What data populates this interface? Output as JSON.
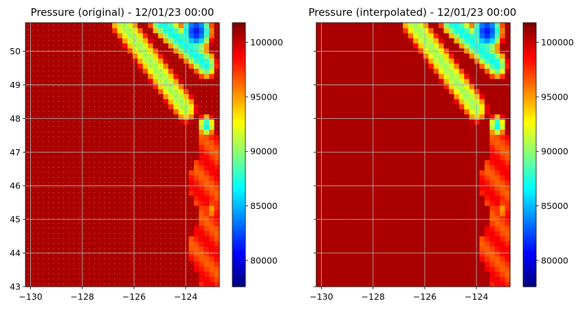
{
  "chart_data": [
    {
      "type": "heatmap",
      "title": "Pressure (original) - 12/01/23 00:00",
      "xlabel": "",
      "ylabel": "",
      "xlim": [
        -130.2,
        -122.7
      ],
      "ylim": [
        43.0,
        50.85
      ],
      "xticks": [
        -130,
        -128,
        -126,
        -124
      ],
      "xtick_labels": [
        "−130",
        "−128",
        "−126",
        "−124"
      ],
      "yticks": [
        43,
        44,
        45,
        46,
        47,
        48,
        49,
        50
      ],
      "ytick_labels": [
        "43",
        "44",
        "45",
        "46",
        "47",
        "48",
        "49",
        "50"
      ],
      "grid": true,
      "style": "scatter-dots",
      "colorbar": {
        "cmap": "jet",
        "range": [
          77600,
          101800
        ],
        "ticks": [
          80000,
          85000,
          90000,
          95000,
          100000
        ],
        "tick_labels": [
          "80000",
          "85000",
          "90000",
          "95000",
          "100000"
        ]
      },
      "field": {
        "background": 100800,
        "features": [
          {
            "shape": "coast",
            "min_lat": 43.0,
            "max_lat": 47.5,
            "lon_start": -123.7,
            "value": 96500
          },
          {
            "shape": "band",
            "from": [
              -126.5,
              50.9
            ],
            "to": [
              -124.0,
              48.3
            ],
            "width_deg": 0.45,
            "value": 90500
          },
          {
            "shape": "band",
            "from": [
              -125.0,
              50.9
            ],
            "to": [
              -123.2,
              49.6
            ],
            "width_deg": 0.45,
            "value": 87000
          },
          {
            "shape": "blob",
            "center": [
              -123.6,
              50.6
            ],
            "radius_deg": 0.7,
            "value": 81000
          },
          {
            "shape": "blob",
            "center": [
              -123.2,
              47.8
            ],
            "radius_deg": 0.35,
            "value": 86500
          },
          {
            "shape": "blob",
            "center": [
              -123.0,
              45.3
            ],
            "radius_deg": 0.3,
            "value": 95000
          }
        ]
      }
    },
    {
      "type": "heatmap",
      "title": "Pressure (interpolated) - 12/01/23 00:00",
      "xlabel": "",
      "ylabel": "",
      "xlim": [
        -130.2,
        -122.7
      ],
      "ylim": [
        43.0,
        50.85
      ],
      "xticks": [
        -130,
        -128,
        -126,
        -124
      ],
      "xtick_labels": [
        "−130",
        "−128",
        "−126",
        "−124"
      ],
      "yticks": [
        43,
        44,
        45,
        46,
        47,
        48,
        49,
        50
      ],
      "ytick_labels": [],
      "grid": true,
      "style": "pixel-grid",
      "colorbar": {
        "cmap": "jet",
        "range": [
          77600,
          101800
        ],
        "ticks": [
          80000,
          85000,
          90000,
          95000,
          100000
        ],
        "tick_labels": [
          "80000",
          "85000",
          "90000",
          "95000",
          "100000"
        ]
      },
      "field": {
        "background": 100800,
        "features": [
          {
            "shape": "coast",
            "min_lat": 43.0,
            "max_lat": 47.5,
            "lon_start": -123.7,
            "value": 96500
          },
          {
            "shape": "band",
            "from": [
              -126.5,
              50.9
            ],
            "to": [
              -124.0,
              48.3
            ],
            "width_deg": 0.45,
            "value": 90500
          },
          {
            "shape": "band",
            "from": [
              -125.0,
              50.9
            ],
            "to": [
              -123.2,
              49.6
            ],
            "width_deg": 0.45,
            "value": 87000
          },
          {
            "shape": "blob",
            "center": [
              -123.6,
              50.6
            ],
            "radius_deg": 0.7,
            "value": 81000
          },
          {
            "shape": "blob",
            "center": [
              -123.2,
              47.8
            ],
            "radius_deg": 0.35,
            "value": 86500
          },
          {
            "shape": "blob",
            "center": [
              -123.0,
              45.3
            ],
            "radius_deg": 0.3,
            "value": 95000
          }
        ]
      }
    }
  ]
}
